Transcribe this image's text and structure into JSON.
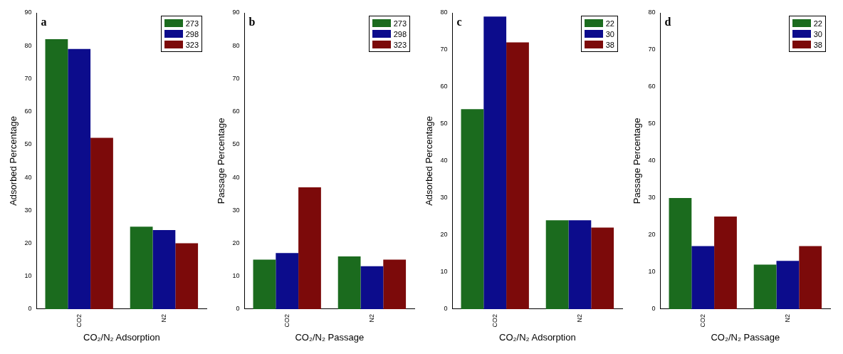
{
  "chart_data": [
    {
      "type": "bar",
      "annotations": [
        "a"
      ],
      "xlabel": "CO₂/N₂ Adsorption",
      "ylabel": "Adsorbed Percentage",
      "categories": [
        "CO2",
        "N2"
      ],
      "ylim": [
        0,
        90
      ],
      "yticks": [
        0,
        10,
        20,
        30,
        40,
        50,
        60,
        70,
        80,
        90
      ],
      "grid": false,
      "legend": "top right",
      "series": [
        {
          "name": "273",
          "color": "#1b6b1e",
          "values": [
            82,
            25
          ]
        },
        {
          "name": "298",
          "color": "#0c0c8c",
          "values": [
            79,
            24
          ]
        },
        {
          "name": "323",
          "color": "#7c0a0a",
          "values": [
            52,
            20
          ]
        }
      ]
    },
    {
      "type": "bar",
      "annotations": [
        "b"
      ],
      "xlabel": "CO₂/N₂ Passage",
      "ylabel": "Passage Percentage",
      "categories": [
        "CO2",
        "N2"
      ],
      "ylim": [
        0,
        90
      ],
      "yticks": [
        0,
        10,
        20,
        30,
        40,
        50,
        60,
        70,
        80,
        90
      ],
      "grid": false,
      "legend": "top right",
      "series": [
        {
          "name": "273",
          "color": "#1b6b1e",
          "values": [
            15,
            16
          ]
        },
        {
          "name": "298",
          "color": "#0c0c8c",
          "values": [
            17,
            13
          ]
        },
        {
          "name": "323",
          "color": "#7c0a0a",
          "values": [
            37,
            15
          ]
        }
      ]
    },
    {
      "type": "bar",
      "annotations": [
        "c"
      ],
      "xlabel": "CO₂/N₂ Adsorption",
      "ylabel": "Adsorbed Percentage",
      "categories": [
        "CO2",
        "N2"
      ],
      "ylim": [
        0,
        80
      ],
      "yticks": [
        0,
        10,
        20,
        30,
        40,
        50,
        60,
        70,
        80
      ],
      "grid": false,
      "legend": "top right",
      "series": [
        {
          "name": "22",
          "color": "#1b6b1e",
          "values": [
            54,
            24
          ]
        },
        {
          "name": "30",
          "color": "#0c0c8c",
          "values": [
            79,
            24
          ]
        },
        {
          "name": "38",
          "color": "#7c0a0a",
          "values": [
            72,
            22
          ]
        }
      ]
    },
    {
      "type": "bar",
      "annotations": [
        "d"
      ],
      "xlabel": "CO₂/N₂ Passage",
      "ylabel": "Passage Percentage",
      "categories": [
        "CO2",
        "N2"
      ],
      "ylim": [
        0,
        80
      ],
      "yticks": [
        0,
        10,
        20,
        30,
        40,
        50,
        60,
        70,
        80
      ],
      "grid": false,
      "legend": "top right",
      "series": [
        {
          "name": "22",
          "color": "#1b6b1e",
          "values": [
            30,
            12
          ]
        },
        {
          "name": "30",
          "color": "#0c0c8c",
          "values": [
            17,
            13
          ]
        },
        {
          "name": "38",
          "color": "#7c0a0a",
          "values": [
            25,
            17
          ]
        }
      ]
    }
  ]
}
